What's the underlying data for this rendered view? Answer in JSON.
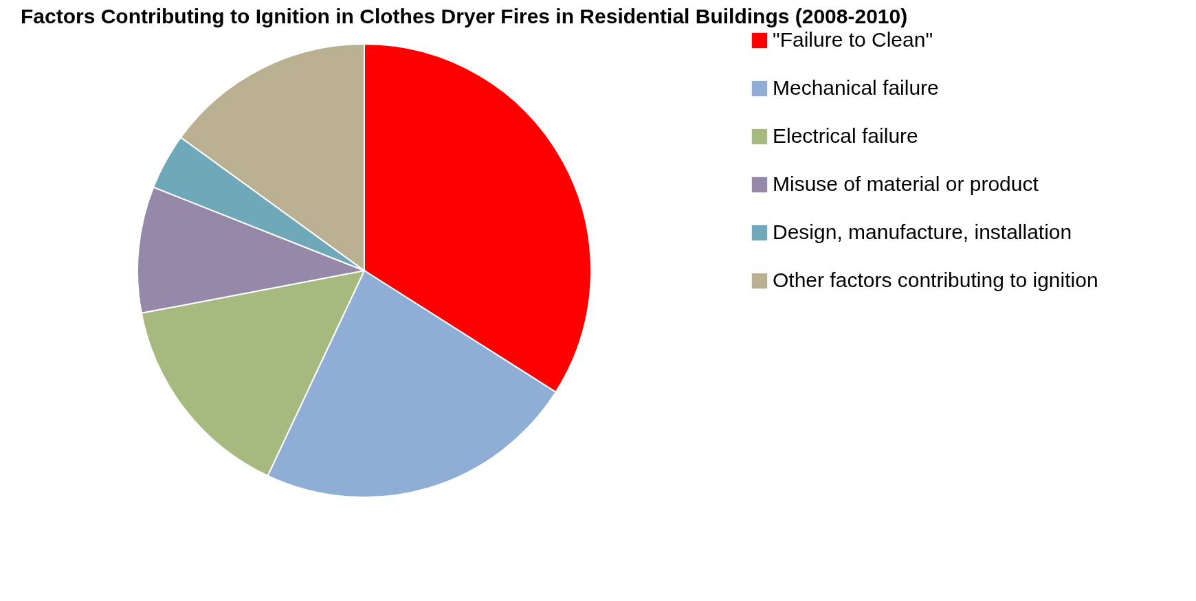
{
  "chart_data": {
    "type": "pie",
    "title": "Factors Contributing to Ignition in Clothes Dryer Fires in Residential Buildings (2008-2010)",
    "categories": [
      "\"Failure to Clean\"",
      "Mechanical failure",
      "Electrical failure",
      "Misuse of material or product",
      "Design, manufacture, installation",
      "Other factors contributing to ignition"
    ],
    "values": [
      34,
      23,
      15,
      9,
      4,
      15
    ],
    "colors": [
      "#ff0000",
      "#8eaed6",
      "#a6b97f",
      "#9688a8",
      "#6fa8b8",
      "#b8b090"
    ],
    "legend": "right"
  }
}
